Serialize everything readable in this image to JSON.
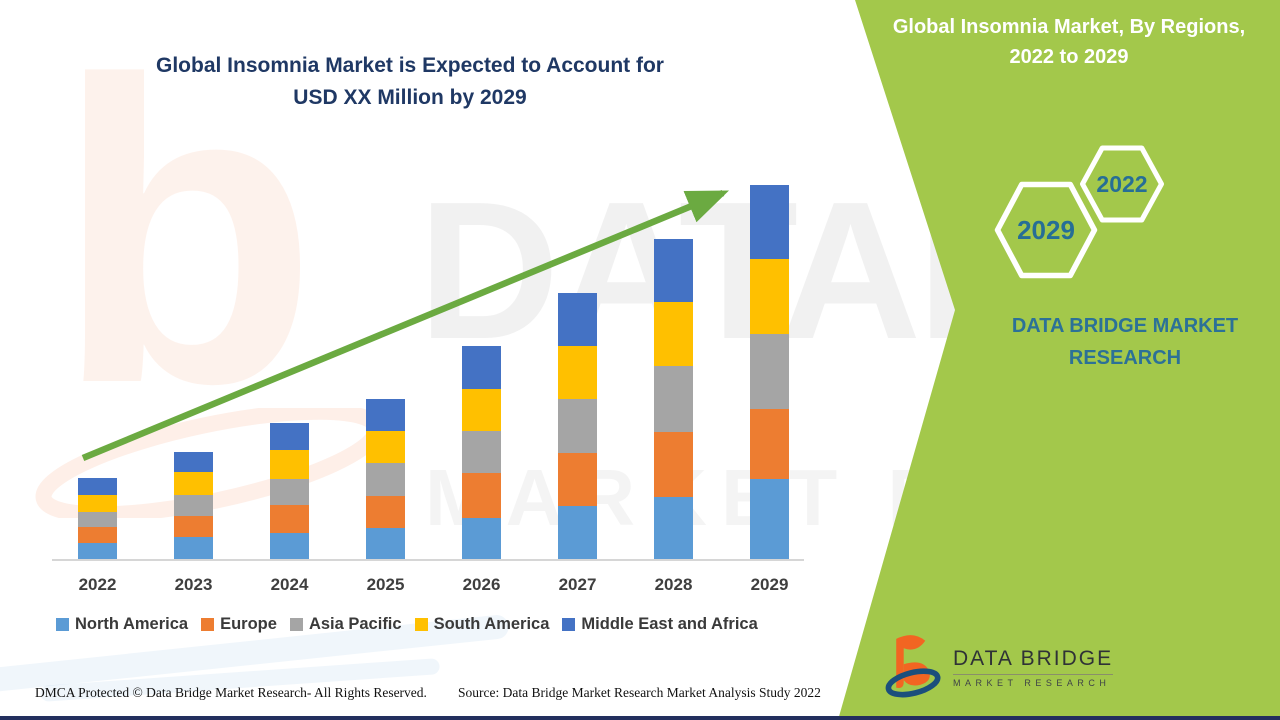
{
  "main_title": {
    "line1": "Global Insomnia Market is Expected to Account for",
    "line2": "USD XX Million by 2029"
  },
  "chart_data": {
    "type": "bar",
    "stacked": true,
    "title": "Global Insomnia Market is Expected to Account for USD XX Million by 2029",
    "categories": [
      "2022",
      "2023",
      "2024",
      "2025",
      "2026",
      "2027",
      "2028",
      "2029"
    ],
    "series": [
      {
        "name": "North America",
        "color": "#5B9BD5",
        "values": [
          16,
          22,
          26,
          31,
          41,
          53,
          62,
          80
        ]
      },
      {
        "name": "Europe",
        "color": "#ED7D31",
        "values": [
          16,
          21,
          28,
          32,
          45,
          53,
          65,
          70
        ]
      },
      {
        "name": "Asia Pacific",
        "color": "#A5A5A5",
        "values": [
          15,
          21,
          26,
          33,
          42,
          54,
          66,
          75
        ]
      },
      {
        "name": "South America",
        "color": "#FFC000",
        "values": [
          17,
          23,
          29,
          32,
          42,
          53,
          64,
          75
        ]
      },
      {
        "name": "Middle East and Africa",
        "color": "#4472C4",
        "values": [
          17,
          20,
          27,
          32,
          43,
          53,
          63,
          74
        ]
      }
    ],
    "xlabel": "",
    "ylabel": "",
    "values_unit": "relative (no numeric axis shown; values labeled as USD XX Million)",
    "legend_position": "bottom",
    "grid": false,
    "trend_arrow": {
      "color": "#6BAA41",
      "description": "upward arrow from 2022 bar to 2029 bar top"
    }
  },
  "footer": {
    "dmca": "DMCA Protected © Data Bridge Market Research- All Rights Reserved.",
    "source": "Source: Data Bridge Market Research Market Analysis Study 2022"
  },
  "side_panel": {
    "title": "Global Insomnia Market, By Regions, 2022 to 2029",
    "hexagon_big_year": "2029",
    "hexagon_small_year": "2022",
    "brand_text": "DATA BRIDGE MARKET RESEARCH",
    "logo_title": "DATA BRIDGE",
    "logo_subtitle": "MARKET RESEARCH",
    "bg_color": "#A3C84B",
    "accent_text_color": "#2C7197"
  },
  "watermark": {
    "letter": "b",
    "brand": "DATABRIDGE",
    "sub": "MARKET RESEARCH"
  },
  "colors": {
    "title_navy": "#1F3864",
    "arrow_green": "#6BAA41",
    "panel_green": "#A3C84B"
  }
}
